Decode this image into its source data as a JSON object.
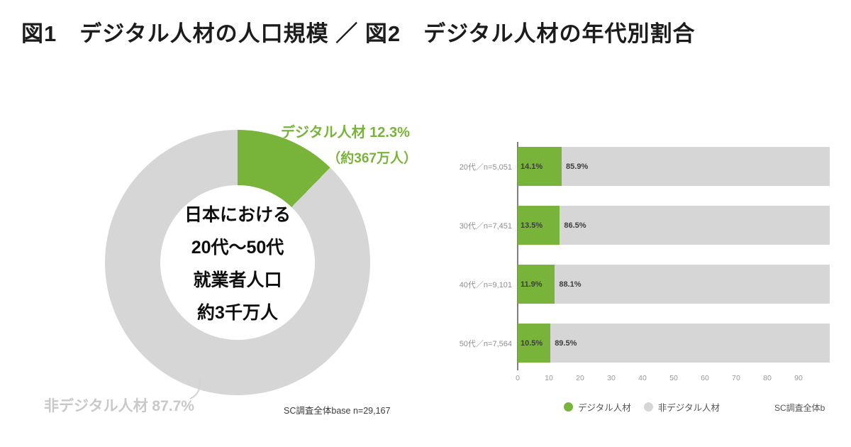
{
  "title": "図1　デジタル人材の人口規模 ／ 図2　デジタル人材の年代別割合",
  "colors": {
    "digital_green": "#79b43a",
    "non_digital_gray": "#d6d6d6",
    "muted_label_gray": "#c9c9c9"
  },
  "chart_data": [
    {
      "type": "pie",
      "subtype": "donut",
      "slices": [
        {
          "label": "デジタル人材",
          "value": 12.3,
          "color": "#79b43a"
        },
        {
          "label": "非デジタル人材",
          "value": 87.7,
          "color": "#d6d6d6"
        }
      ],
      "callout_digital": {
        "line1": "デジタル人材 12.3%",
        "line2": "（約367万人）"
      },
      "callout_non_digital": "非デジタル人材 87.7%",
      "center_lines": [
        "日本における",
        "20代～50代",
        "就業者人口",
        "約3千万人"
      ],
      "source": "SC調査全体base n=29,167"
    },
    {
      "type": "bar",
      "orientation": "horizontal",
      "stacked": true,
      "categories": [
        "20代／n=5,051",
        "30代／n=7,451",
        "40代／n=9,101",
        "50代／n=7,564"
      ],
      "series": [
        {
          "name": "デジタル人材",
          "color": "#79b43a",
          "values": [
            14.1,
            13.5,
            11.9,
            10.5
          ]
        },
        {
          "name": "非デジタル人材",
          "color": "#d6d6d6",
          "values": [
            85.9,
            86.5,
            88.1,
            89.5
          ]
        }
      ],
      "xlim": [
        0,
        100
      ],
      "xticks": [
        0,
        10,
        20,
        30,
        40,
        50,
        60,
        70,
        80,
        90
      ],
      "legend_position": "bottom",
      "source": "SC調査全体b"
    }
  ]
}
